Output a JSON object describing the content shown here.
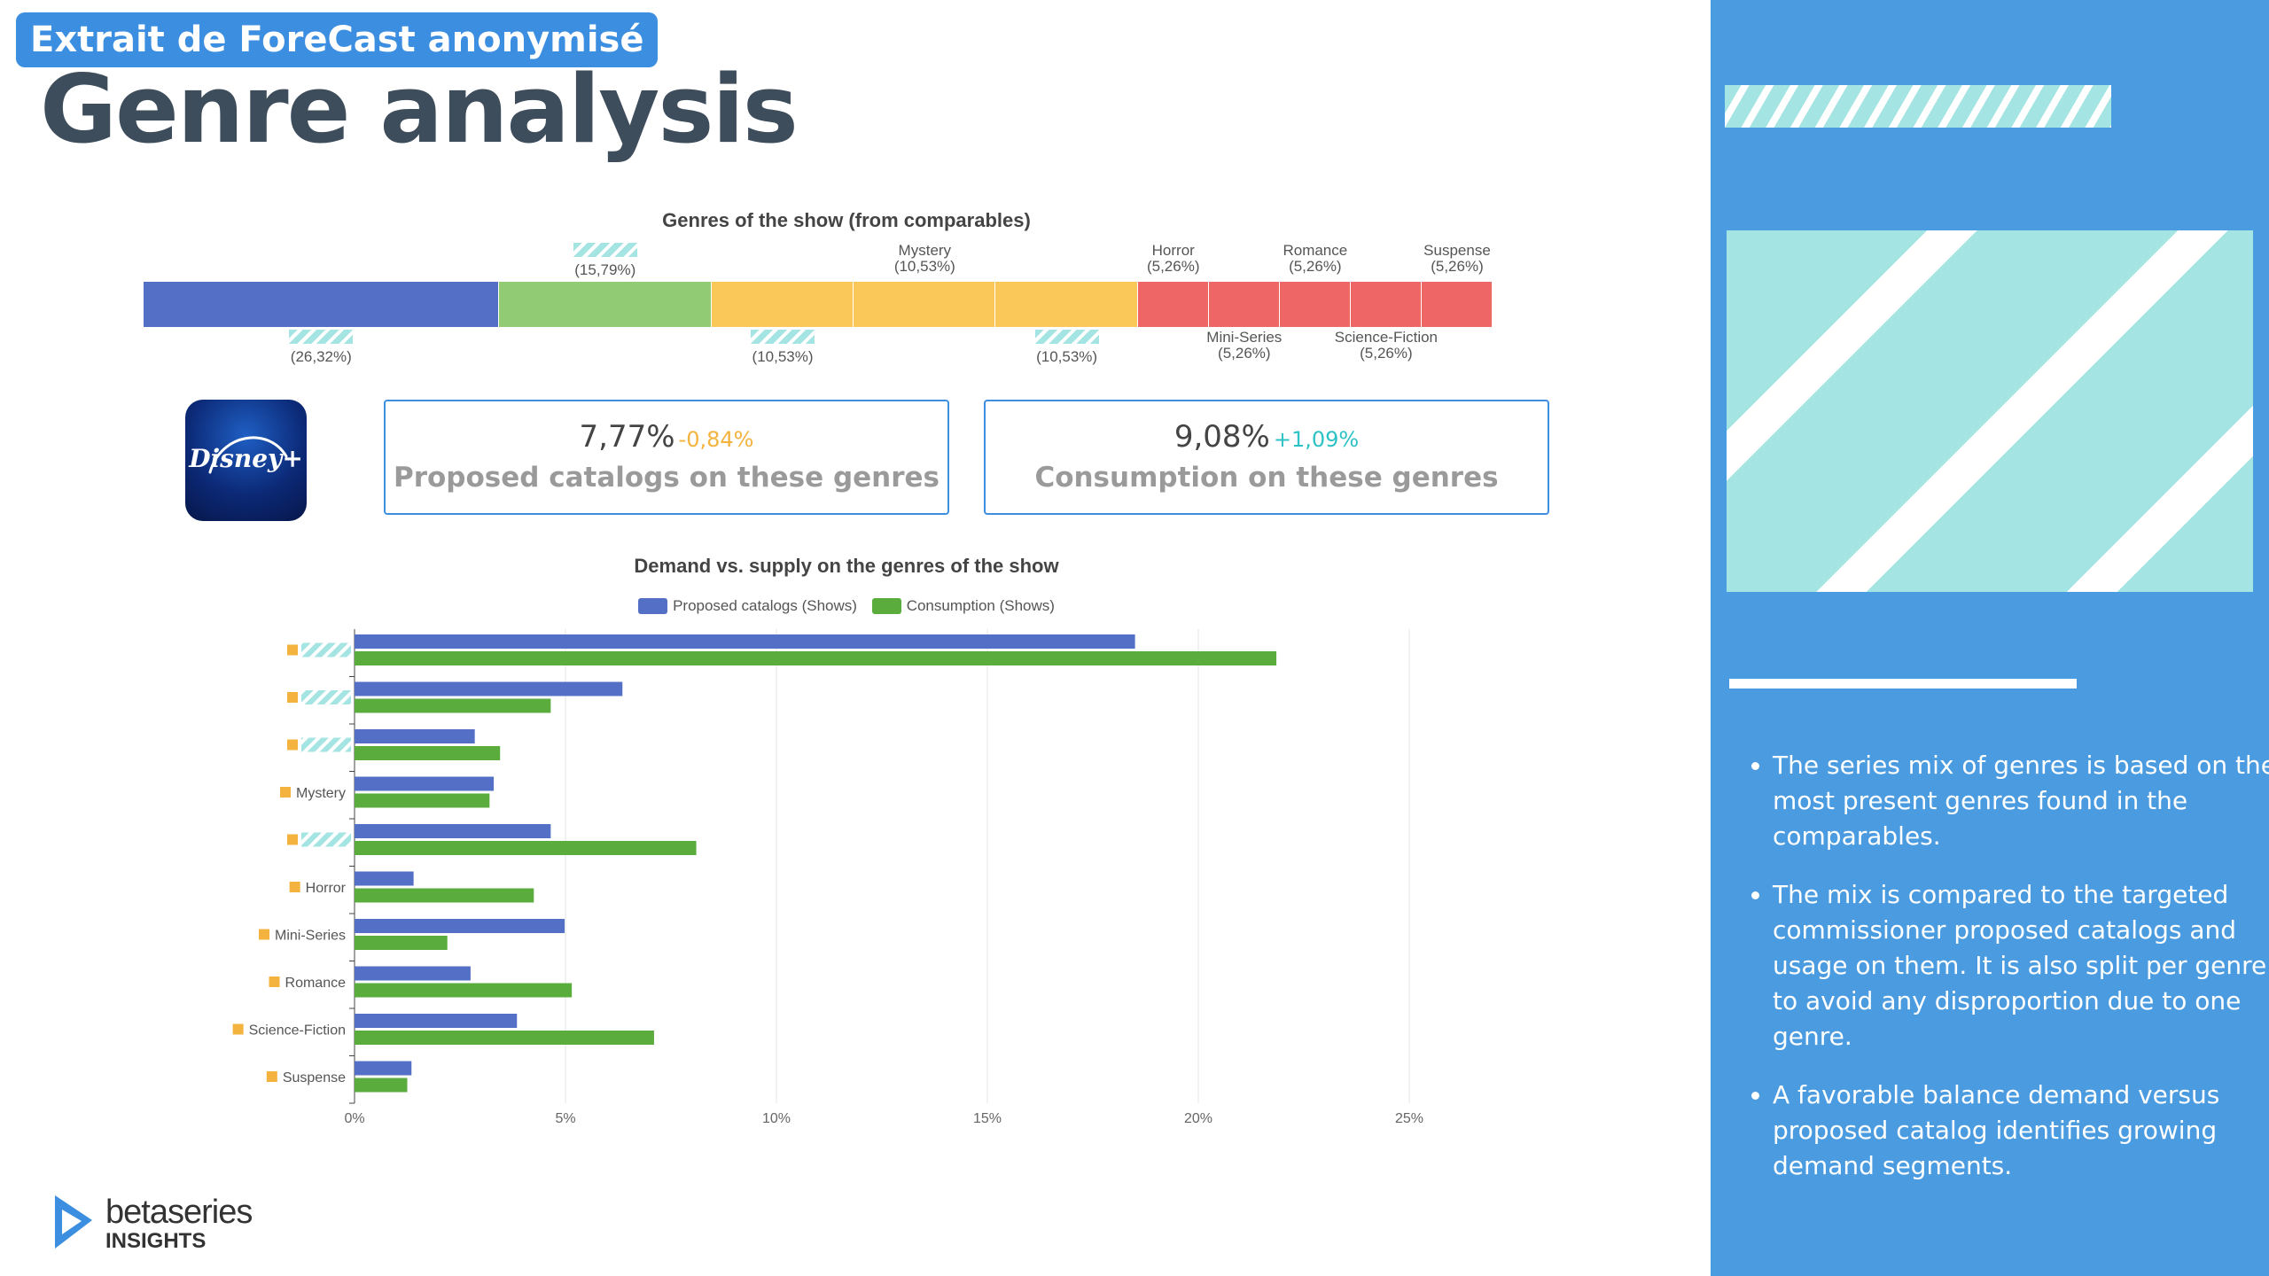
{
  "header": {
    "badge": "Extrait de ForeCast anonymisé",
    "title": "Genre analysis"
  },
  "colors": {
    "accent": "#3b8ee0",
    "sidebar": "#4a9be0",
    "hatch": "#a4e4e2",
    "blue_series": "#5470c6",
    "green_series": "#5aad3c",
    "light_green": "#91cc75",
    "yellow": "#fac858",
    "red": "#ee6666",
    "positive": "#2dc2c5",
    "negative": "#f4b33e",
    "tick_marker": "#f4b33e"
  },
  "chart_data": [
    {
      "type": "stacked-bar",
      "title": "Genres of the show (from comparables)",
      "segments": [
        {
          "label": "",
          "value_label": "(26,32%)",
          "value": 26.32,
          "color": "#5470c6",
          "hatched_name": true,
          "label_pos": "bottom"
        },
        {
          "label": "",
          "value_label": "(15,79%)",
          "value": 15.79,
          "color": "#91cc75",
          "hatched_name": true,
          "label_pos": "top"
        },
        {
          "label": "",
          "value_label": "(10,53%)",
          "value": 10.53,
          "color": "#fac858",
          "hatched_name": true,
          "label_pos": "bottom"
        },
        {
          "label": "Mystery",
          "value_label": "(10,53%)",
          "value": 10.53,
          "color": "#fac858",
          "hatched_name": false,
          "label_pos": "top"
        },
        {
          "label": "",
          "value_label": "(10,53%)",
          "value": 10.53,
          "color": "#fac858",
          "hatched_name": true,
          "label_pos": "bottom"
        },
        {
          "label": "Horror",
          "value_label": "(5,26%)",
          "value": 5.26,
          "color": "#ee6666",
          "hatched_name": false,
          "label_pos": "top"
        },
        {
          "label": "Mini-Series",
          "value_label": "(5,26%)",
          "value": 5.26,
          "color": "#ee6666",
          "hatched_name": false,
          "label_pos": "bottom"
        },
        {
          "label": "Romance",
          "value_label": "(5,26%)",
          "value": 5.26,
          "color": "#ee6666",
          "hatched_name": false,
          "label_pos": "top"
        },
        {
          "label": "Science-Fiction",
          "value_label": "(5,26%)",
          "value": 5.26,
          "color": "#ee6666",
          "hatched_name": false,
          "label_pos": "bottom"
        },
        {
          "label": "Suspense",
          "value_label": "(5,26%)",
          "value": 5.26,
          "color": "#ee6666",
          "hatched_name": false,
          "label_pos": "top"
        }
      ]
    },
    {
      "type": "bar",
      "orientation": "horizontal",
      "title": "Demand vs. supply on the genres of the show",
      "legend": [
        "Proposed catalogs (Shows)",
        "Consumption (Shows)"
      ],
      "legend_position": "top",
      "categories": [
        {
          "label": "",
          "hatched": true
        },
        {
          "label": "",
          "hatched": true
        },
        {
          "label": "",
          "hatched": true
        },
        {
          "label": "Mystery",
          "hatched": false
        },
        {
          "label": "",
          "hatched": true
        },
        {
          "label": "Horror",
          "hatched": false
        },
        {
          "label": "Mini-Series",
          "hatched": false
        },
        {
          "label": "Romance",
          "hatched": false
        },
        {
          "label": "Science-Fiction",
          "hatched": false
        },
        {
          "label": "Suspense",
          "hatched": false
        }
      ],
      "series": [
        {
          "name": "Proposed catalogs (Shows)",
          "color": "#5470c6",
          "values": [
            18.5,
            6.35,
            2.85,
            3.3,
            4.65,
            1.4,
            4.98,
            2.75,
            3.85,
            1.35
          ]
        },
        {
          "name": "Consumption (Shows)",
          "color": "#5aad3c",
          "values": [
            21.85,
            4.65,
            3.45,
            3.2,
            8.1,
            4.25,
            2.2,
            5.15,
            7.1,
            1.25
          ]
        }
      ],
      "xlim": [
        0,
        25
      ],
      "x_ticks": [
        0,
        5,
        10,
        15,
        20,
        25
      ],
      "x_tick_labels": [
        "0%",
        "5%",
        "10%",
        "15%",
        "20%",
        "25%"
      ],
      "grid": true
    }
  ],
  "kpis": [
    {
      "value": "7,77%",
      "delta": "-0,84%",
      "label": "Proposed catalogs on these genres",
      "delta_color": "#f4b33e"
    },
    {
      "value": "9,08%",
      "delta": "+1,09%",
      "label": "Consumption on these genres",
      "delta_color": "#2dc2c5"
    }
  ],
  "platform_logo": {
    "text": "Disney+",
    "icon": "disney-plus-logo"
  },
  "footer": {
    "brand": "betaseries",
    "sub": "INSIGHTS",
    "icon": "betaseries-play-icon"
  },
  "sidebar": {
    "bullets": [
      "The series mix of genres is based on the most present genres found in the comparables.",
      "The mix is compared to the targeted commissioner proposed catalogs and usage on them. It is also split per genre to avoid any disproportion due to one genre.",
      "A favorable balance demand versus proposed catalog identifies growing demand segments."
    ]
  }
}
